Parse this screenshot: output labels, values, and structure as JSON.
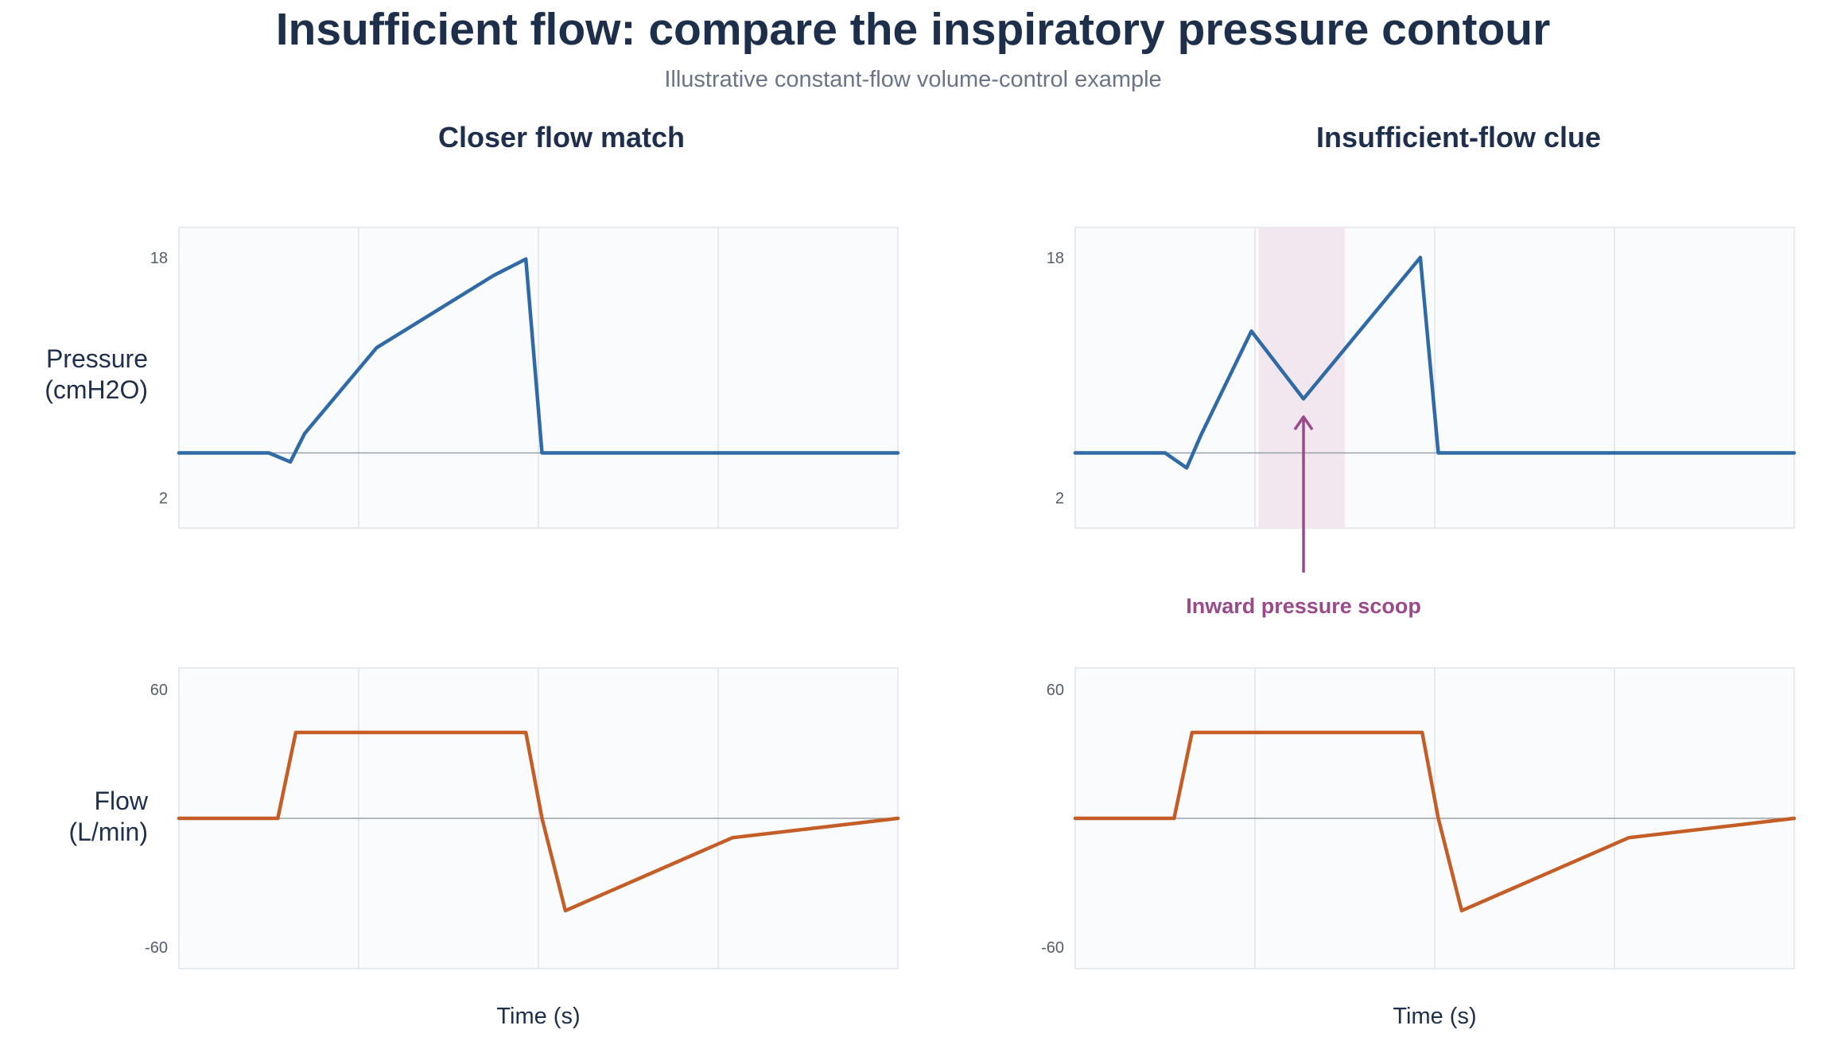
{
  "title": "Insufficient flow: compare the inspiratory pressure contour",
  "subtitle": "Illustrative constant-flow volume-control example",
  "colors": {
    "pressure": "#2f6aa6",
    "flow": "#c45e26",
    "highlight": "#f2e6ef",
    "annotation": "#9a4a8b",
    "plot_bg": "#f9fbfd",
    "grid": "#e0e4ea",
    "zero_line": "#9aa0a8"
  },
  "row_labels": {
    "pressure": "Pressure\n(cmH2O)",
    "flow": "Flow\n(L/min)"
  },
  "xlabel": "Time (s)",
  "chart_data": [
    {
      "type": "line",
      "panel": "Closer flow match",
      "ylabel": "Pressure (cmH2O)",
      "xlabel": "",
      "ylim": [
        0,
        20
      ],
      "yticks": [
        2,
        18
      ],
      "xlim": [
        0,
        4
      ],
      "grid": "vertical",
      "series": [
        {
          "values": [
            [
              0,
              5
            ],
            [
              0.5,
              5
            ],
            [
              0.62,
              4.4
            ],
            [
              0.7,
              6.3
            ],
            [
              1.1,
              12
            ],
            [
              1.75,
              16.8
            ],
            [
              1.93,
              17.9
            ],
            [
              2.02,
              5
            ],
            [
              4,
              5
            ]
          ]
        }
      ]
    },
    {
      "type": "line",
      "panel": "Insufficient-flow clue",
      "ylabel": "Pressure (cmH2O)",
      "xlabel": "",
      "ylim": [
        0,
        20
      ],
      "yticks": [
        2,
        18
      ],
      "xlim": [
        0,
        4
      ],
      "grid": "vertical",
      "highlight": [
        1.02,
        1.5
      ],
      "annotation": {
        "text": "Inward pressure scoop",
        "x": 1.27,
        "y": 7.4
      },
      "series": [
        {
          "values": [
            [
              0,
              5
            ],
            [
              0.5,
              5
            ],
            [
              0.62,
              4
            ],
            [
              0.7,
              6.2
            ],
            [
              0.98,
              13.1
            ],
            [
              1.27,
              8.6
            ],
            [
              1.92,
              18
            ],
            [
              2.02,
              5
            ],
            [
              4,
              5
            ]
          ]
        }
      ]
    },
    {
      "type": "line",
      "panel": "Closer flow match",
      "ylabel": "Flow (L/min)",
      "xlabel": "Time (s)",
      "ylim": [
        -70,
        70
      ],
      "yticks": [
        60,
        -60
      ],
      "xlim": [
        0,
        4
      ],
      "grid": "vertical",
      "series": [
        {
          "values": [
            [
              0,
              0
            ],
            [
              0.55,
              0
            ],
            [
              0.65,
              40
            ],
            [
              1.93,
              40
            ],
            [
              2.02,
              0
            ],
            [
              2.15,
              -43
            ],
            [
              3.08,
              -9
            ],
            [
              4,
              0
            ]
          ]
        }
      ]
    },
    {
      "type": "line",
      "panel": "Insufficient-flow clue",
      "ylabel": "Flow (L/min)",
      "xlabel": "Time (s)",
      "ylim": [
        -70,
        70
      ],
      "yticks": [
        60,
        -60
      ],
      "xlim": [
        0,
        4
      ],
      "grid": "vertical",
      "series": [
        {
          "values": [
            [
              0,
              0
            ],
            [
              0.55,
              0
            ],
            [
              0.65,
              40
            ],
            [
              1.93,
              40
            ],
            [
              2.02,
              0
            ],
            [
              2.15,
              -43
            ],
            [
              3.08,
              -9
            ],
            [
              4,
              0
            ]
          ]
        }
      ]
    }
  ]
}
